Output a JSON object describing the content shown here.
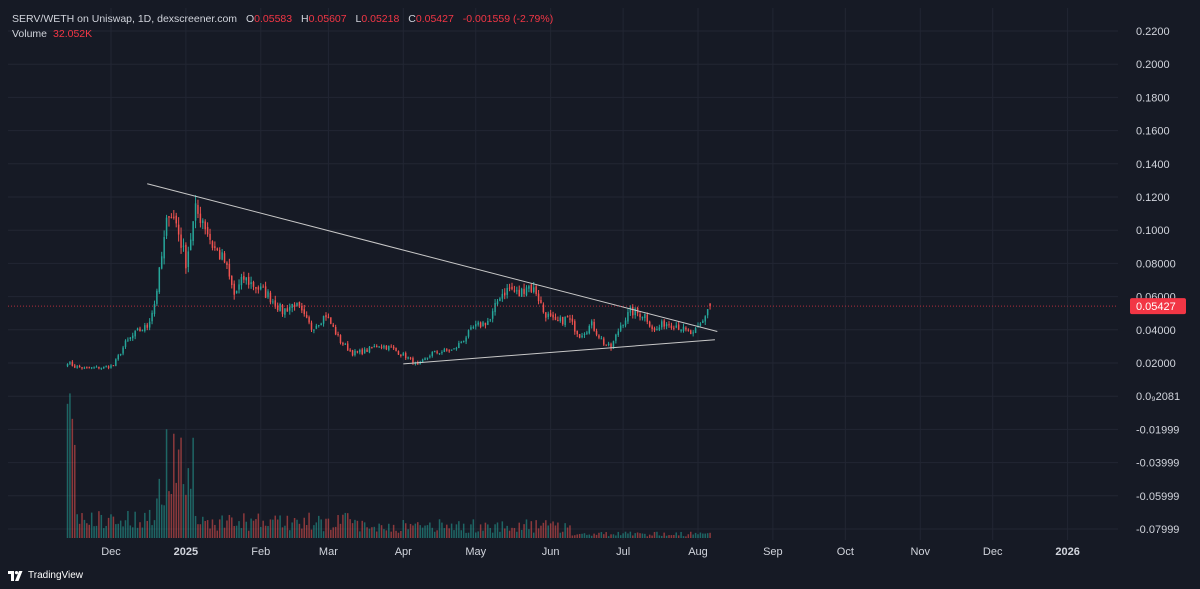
{
  "legend": {
    "symbol": "SERV/WETH on Uniswap, 1D, dexscreener.com",
    "o_label": "O",
    "o": "0.05583",
    "h_label": "H",
    "h": "0.05607",
    "l_label": "L",
    "l": "0.05218",
    "c_label": "C",
    "c": "0.05427",
    "change": "-0.001559 (-2.79%)",
    "volume_label": "Volume",
    "volume": "32.052K"
  },
  "price_axis": {
    "ticks": [
      "0.2200",
      "0.2000",
      "0.1800",
      "0.1600",
      "0.1400",
      "0.1200",
      "0.1000",
      "0.08000",
      "0.06000",
      "0.04000",
      "0.02000",
      "0.0₉2081",
      "-0.01999",
      "-0.03999",
      "-0.05999",
      "-0.07999"
    ],
    "last_price_label": "0.05427"
  },
  "time_axis": {
    "ticks": [
      "Dec",
      "2025",
      "Feb",
      "Mar",
      "Apr",
      "May",
      "Jun",
      "Jul",
      "Aug",
      "Sep",
      "Oct",
      "Nov",
      "Dec",
      "2026"
    ],
    "bold_ticks": [
      "2025",
      "2026"
    ]
  },
  "branding": {
    "text": "TradingView"
  },
  "colors": {
    "background": "#161a25",
    "up": "#26a69a",
    "down": "#ef5350",
    "grid": "#222633",
    "trendline": "#c8c8c8",
    "last_price": "#f23645",
    "text": "#d1d4dc"
  },
  "chart_data": {
    "type": "candlestick",
    "symbol": "SERV/WETH",
    "interval": "1D",
    "ylim": [
      -0.08,
      0.22
    ],
    "x_range": [
      "2024-11-13",
      "2026-02-10"
    ],
    "anchors": [
      [
        "2024-11-13",
        0.0205
      ],
      [
        "2024-11-16",
        0.0178
      ],
      [
        "2024-11-20",
        0.0168
      ],
      [
        "2024-11-28",
        0.0174
      ],
      [
        "2024-12-02",
        0.0185
      ],
      [
        "2024-12-07",
        0.032
      ],
      [
        "2024-12-12",
        0.039
      ],
      [
        "2024-12-16",
        0.042
      ],
      [
        "2024-12-19",
        0.056
      ],
      [
        "2024-12-21",
        0.074
      ],
      [
        "2024-12-25",
        0.113
      ],
      [
        "2024-12-28",
        0.104
      ],
      [
        "2025-01-01",
        0.081
      ],
      [
        "2025-01-05",
        0.111
      ],
      [
        "2025-01-08",
        0.107
      ],
      [
        "2025-01-12",
        0.091
      ],
      [
        "2025-01-17",
        0.081
      ],
      [
        "2025-01-21",
        0.061
      ],
      [
        "2025-01-25",
        0.071
      ],
      [
        "2025-01-30",
        0.066
      ],
      [
        "2025-02-04",
        0.061
      ],
      [
        "2025-02-10",
        0.051
      ],
      [
        "2025-02-15",
        0.056
      ],
      [
        "2025-02-22",
        0.041
      ],
      [
        "2025-02-28",
        0.049
      ],
      [
        "2025-03-06",
        0.033
      ],
      [
        "2025-03-11",
        0.026
      ],
      [
        "2025-03-16",
        0.027
      ],
      [
        "2025-03-22",
        0.031
      ],
      [
        "2025-03-27",
        0.029
      ],
      [
        "2025-04-03",
        0.023
      ],
      [
        "2025-04-07",
        0.0185
      ],
      [
        "2025-04-13",
        0.026
      ],
      [
        "2025-04-22",
        0.028
      ],
      [
        "2025-04-30",
        0.041
      ],
      [
        "2025-05-07",
        0.046
      ],
      [
        "2025-05-11",
        0.061
      ],
      [
        "2025-05-15",
        0.065
      ],
      [
        "2025-05-19",
        0.061
      ],
      [
        "2025-05-22",
        0.067
      ],
      [
        "2025-05-26",
        0.063
      ],
      [
        "2025-05-29",
        0.051
      ],
      [
        "2025-06-03",
        0.044
      ],
      [
        "2025-06-08",
        0.047
      ],
      [
        "2025-06-13",
        0.037
      ],
      [
        "2025-06-18",
        0.043
      ],
      [
        "2025-06-23",
        0.032
      ],
      [
        "2025-06-26",
        0.029
      ],
      [
        "2025-06-30",
        0.043
      ],
      [
        "2025-07-04",
        0.051
      ],
      [
        "2025-07-10",
        0.049
      ],
      [
        "2025-07-14",
        0.039
      ],
      [
        "2025-07-18",
        0.044
      ],
      [
        "2025-07-23",
        0.043
      ],
      [
        "2025-07-27",
        0.039
      ],
      [
        "2025-07-30",
        0.037
      ],
      [
        "2025-08-03",
        0.045
      ],
      [
        "2025-08-05",
        0.053
      ],
      [
        "2025-08-06",
        0.05427
      ]
    ],
    "last_candle": {
      "date": "2025-08-06",
      "open": 0.05583,
      "high": 0.05607,
      "low": 0.05218,
      "close": 0.05427
    },
    "volume_last": "32.052K",
    "trendlines": [
      {
        "name": "descending resistance",
        "from": [
          "2024-12-16",
          0.128
        ],
        "to": [
          "2025-08-09",
          0.039
        ]
      },
      {
        "name": "ascending support",
        "from": [
          "2025-04-01",
          0.0195
        ],
        "to": [
          "2025-08-08",
          0.034
        ]
      }
    ],
    "grid": true
  }
}
